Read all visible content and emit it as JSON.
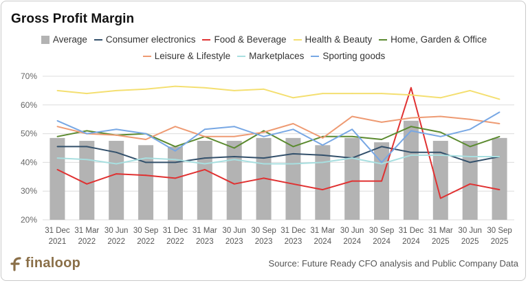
{
  "brand": {
    "name": "finaloop",
    "color": "#8a6f48"
  },
  "source": "Source: Future Ready CFO analysis and Public Company Data",
  "chart_data": {
    "type": "bar",
    "title": "Gross Profit Margin",
    "categories": [
      [
        "31 Dec",
        "2021"
      ],
      [
        "31 Mar",
        "2022"
      ],
      [
        "30 Jun",
        "2022"
      ],
      [
        "30 Sep",
        "2022"
      ],
      [
        "31 Dec",
        "2022"
      ],
      [
        "31 Mar",
        "2023"
      ],
      [
        "30 Jun",
        "2023"
      ],
      [
        "30 Sep",
        "2023"
      ],
      [
        "31 Dec",
        "2023"
      ],
      [
        "31 Mar",
        "2024"
      ],
      [
        "30 Jun",
        "2024"
      ],
      [
        "30 Sep",
        "2024"
      ],
      [
        "31 Dec",
        "2024"
      ],
      [
        "31 Mar",
        "2025"
      ],
      [
        "30 Jun",
        "2025"
      ],
      [
        "30 Sep",
        "2025"
      ]
    ],
    "y_ticks": [
      "70%",
      "60%",
      "50%",
      "40%",
      "30%",
      "20%"
    ],
    "ylim": [
      20,
      70
    ],
    "xlabel": "",
    "ylabel": "",
    "gridlines": true,
    "legend_position": "top",
    "bar_series": {
      "name": "Average",
      "color": "#b3b3b3",
      "values": [
        48.5,
        47.5,
        47.5,
        46,
        45.5,
        47.5,
        47.5,
        48.5,
        48.5,
        46,
        48.5,
        47,
        54.5,
        47.5,
        47.5,
        48.5
      ]
    },
    "series": [
      {
        "name": "Consumer electronics",
        "color": "#33506b",
        "values": [
          45.5,
          45.5,
          43.5,
          40,
          40,
          41.5,
          42,
          41.5,
          43,
          42.5,
          41.5,
          45.5,
          43.5,
          43.5,
          40,
          42
        ]
      },
      {
        "name": "Food & Beverage",
        "color": "#e03131",
        "values": [
          37.5,
          32.5,
          36,
          35.5,
          34.5,
          37.5,
          32.5,
          34.5,
          32.5,
          30.5,
          33.5,
          33.5,
          66,
          27.5,
          32.5,
          30.5
        ]
      },
      {
        "name": "Health & Beauty",
        "color": "#f4df70",
        "values": [
          65,
          64,
          65,
          65.5,
          66.5,
          66,
          65,
          65.5,
          62.5,
          64,
          64,
          64,
          63.5,
          62.5,
          65,
          62
        ]
      },
      {
        "name": "Home, Garden & Office",
        "color": "#5b8a2f",
        "values": [
          49,
          51,
          49.5,
          50,
          45.5,
          49,
          45,
          51,
          45.5,
          49,
          49,
          48,
          52.5,
          50.5,
          45.5,
          49
        ]
      },
      {
        "name": "Leisure & Lifestyle",
        "color": "#ee9a72",
        "values": [
          52.5,
          50,
          49.5,
          48,
          52.5,
          49,
          49,
          50.5,
          53.5,
          48.5,
          56,
          54,
          55.5,
          56,
          55,
          53.5
        ]
      },
      {
        "name": "Marketplaces",
        "color": "#a8dfe0",
        "values": [
          41.5,
          41,
          39.5,
          41.5,
          41,
          39.5,
          41,
          39.5,
          39.5,
          40,
          41.5,
          39.5,
          42.5,
          42.5,
          42,
          42
        ]
      },
      {
        "name": "Sporting goods",
        "color": "#77a7e4",
        "values": [
          54.5,
          50,
          51.5,
          50,
          44,
          51.5,
          52.5,
          49,
          51.5,
          46,
          51.5,
          40,
          51,
          49,
          51.5,
          57.5
        ]
      }
    ]
  }
}
